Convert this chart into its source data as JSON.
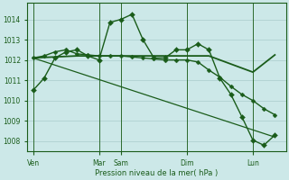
{
  "background_color": "#cce8e8",
  "grid_color": "#aacccc",
  "line_color": "#1a5c1a",
  "marker_color": "#1a5c1a",
  "xlabel": "Pression niveau de la mer( hPa )",
  "ylim": [
    1007.5,
    1014.8
  ],
  "yticks": [
    1008,
    1009,
    1010,
    1011,
    1012,
    1013,
    1014
  ],
  "day_labels": [
    "Ven",
    "Mar",
    "Sam",
    "Dim",
    "Lun"
  ],
  "day_positions": [
    0,
    6,
    8,
    14,
    20
  ],
  "xlim": [
    -0.5,
    23
  ],
  "series": [
    {
      "x": [
        0,
        1,
        2,
        3,
        4,
        5,
        6,
        7,
        8,
        9,
        10,
        11,
        12,
        13,
        14,
        15,
        16,
        17,
        18,
        19,
        20,
        21,
        22
      ],
      "y": [
        1010.5,
        1011.1,
        1012.1,
        1012.4,
        1012.5,
        1012.2,
        1012.0,
        1013.85,
        1014.0,
        1014.25,
        1013.0,
        1012.1,
        1012.1,
        1012.5,
        1012.5,
        1012.8,
        1012.5,
        1011.1,
        1010.3,
        1009.2,
        1008.05,
        1007.8,
        1008.3
      ],
      "marker": "D",
      "linewidth": 1.0,
      "markersize": 3.0
    },
    {
      "x": [
        0,
        1,
        2,
        3,
        4,
        5,
        6,
        7,
        8,
        9,
        10,
        11,
        12,
        13,
        14,
        15,
        16,
        17,
        18,
        19,
        20,
        21,
        22
      ],
      "y": [
        1012.1,
        1012.2,
        1012.4,
        1012.5,
        1012.3,
        1012.25,
        1012.2,
        1012.2,
        1012.2,
        1012.15,
        1012.1,
        1012.05,
        1012.0,
        1012.0,
        1012.0,
        1011.9,
        1011.5,
        1011.15,
        1010.7,
        1010.3,
        1010.0,
        1009.6,
        1009.3
      ],
      "marker": "D",
      "linewidth": 1.0,
      "markersize": 2.5
    },
    {
      "x": [
        0,
        4,
        8,
        12,
        16,
        20,
        22
      ],
      "y": [
        1012.1,
        1012.2,
        1012.2,
        1012.2,
        1012.2,
        1011.4,
        1012.25
      ],
      "marker": null,
      "linewidth": 1.3,
      "markersize": 0
    },
    {
      "x": [
        0,
        22
      ],
      "y": [
        1012.1,
        1008.2
      ],
      "marker": null,
      "linewidth": 0.9,
      "markersize": 0
    }
  ]
}
